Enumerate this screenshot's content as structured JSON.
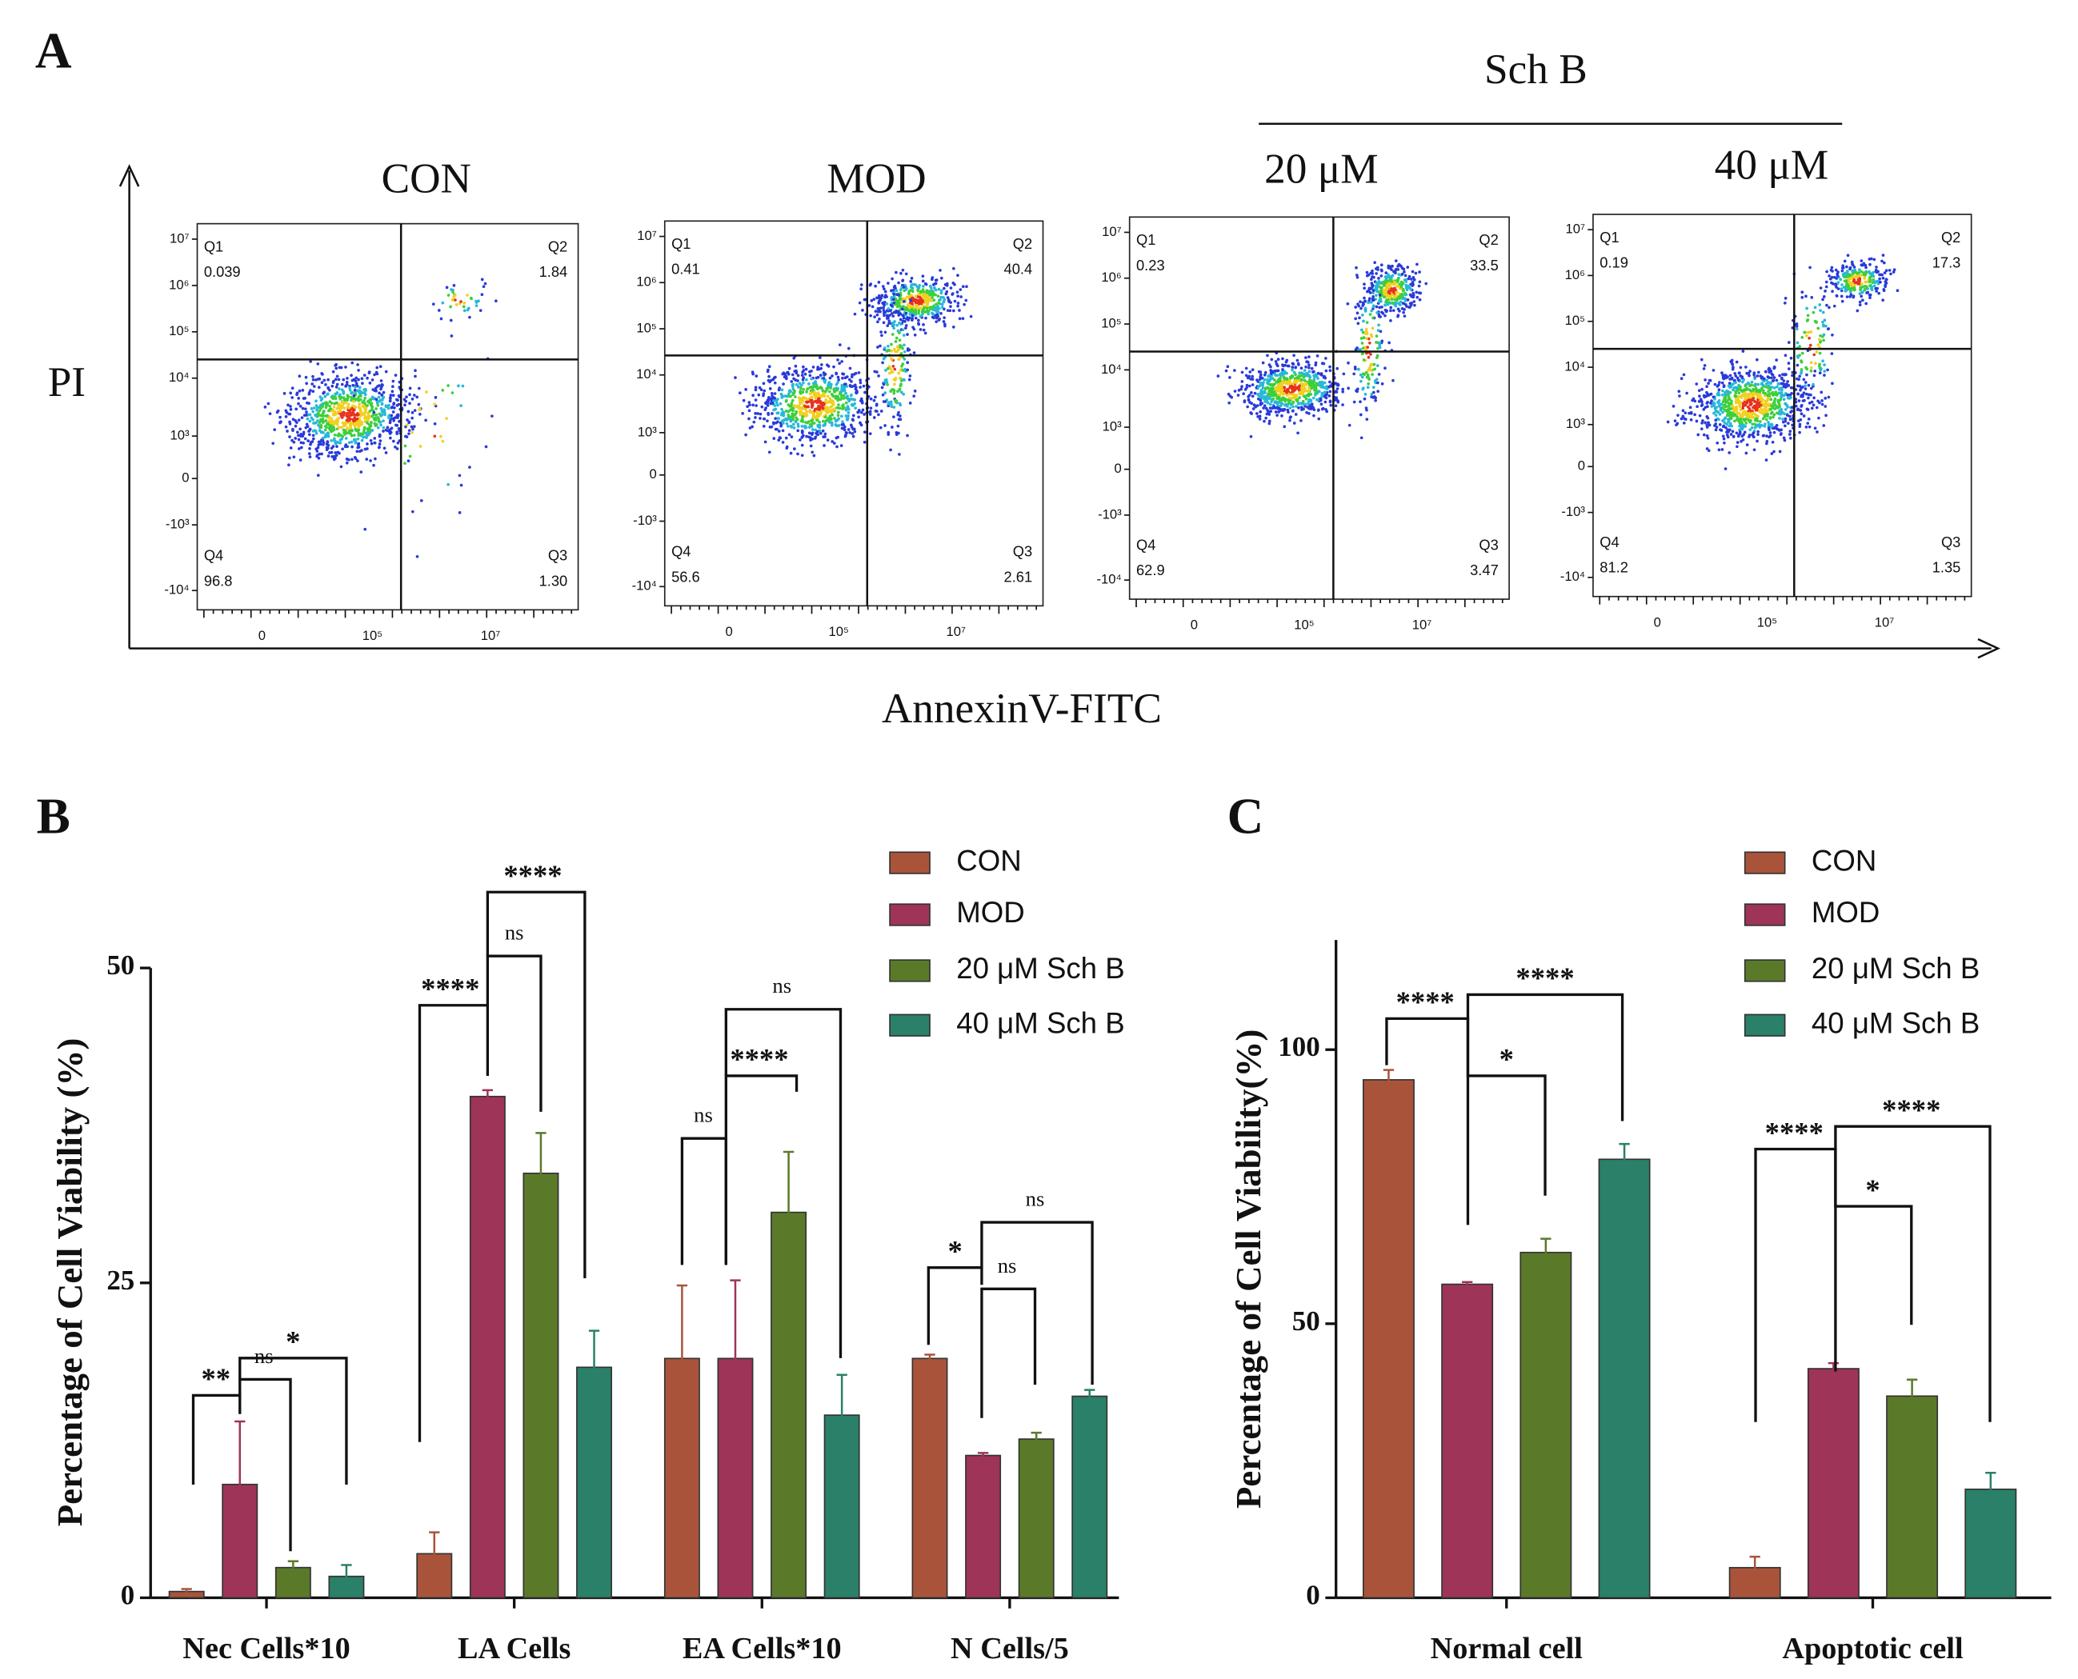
{
  "panel_labels": [
    "A",
    "B",
    "C"
  ],
  "flow": {
    "group_label": "Sch B",
    "x_axis_label": "AnnexinV-FITC",
    "y_axis_label": "PI",
    "yticks": [
      "10⁷",
      "10⁶",
      "10⁵",
      "10⁴",
      "10³",
      "0",
      "-10³",
      "-10⁴"
    ],
    "xticks": [
      "0",
      "10⁵",
      "10⁷"
    ],
    "plots": [
      {
        "title": "CON",
        "quadrants": [
          {
            "name": "Q1",
            "value": "0.039"
          },
          {
            "name": "Q2",
            "value": "1.84"
          },
          {
            "name": "Q3",
            "value": "1.30"
          },
          {
            "name": "Q4",
            "value": "96.8"
          }
        ]
      },
      {
        "title": "MOD",
        "quadrants": [
          {
            "name": "Q1",
            "value": "0.41"
          },
          {
            "name": "Q2",
            "value": "40.4"
          },
          {
            "name": "Q3",
            "value": "2.61"
          },
          {
            "name": "Q4",
            "value": "56.6"
          }
        ]
      },
      {
        "title": "20 μM",
        "quadrants": [
          {
            "name": "Q1",
            "value": "0.23"
          },
          {
            "name": "Q2",
            "value": "33.5"
          },
          {
            "name": "Q3",
            "value": "3.47"
          },
          {
            "name": "Q4",
            "value": "62.9"
          }
        ]
      },
      {
        "title": "40 μM",
        "quadrants": [
          {
            "name": "Q1",
            "value": "0.19"
          },
          {
            "name": "Q2",
            "value": "17.3"
          },
          {
            "name": "Q3",
            "value": "1.35"
          },
          {
            "name": "Q4",
            "value": "81.2"
          }
        ]
      }
    ]
  },
  "chart_data": [
    {
      "type": "bar",
      "y_label": "Percentage of Cell Viability (%)",
      "categories": [
        "Nec Cells*10",
        "LA Cells",
        "EA Cells*10",
        "N Cells/5"
      ],
      "series": [
        {
          "name": "CON",
          "color": "#a9543a",
          "values": [
            0.5,
            3.5,
            19,
            19
          ],
          "errors": [
            0.2,
            1.7,
            5.8,
            0.3
          ]
        },
        {
          "name": "MOD",
          "color": "#9e3458",
          "values": [
            9,
            39.8,
            19,
            11.3
          ],
          "errors": [
            5,
            0.5,
            6.2,
            0.2
          ]
        },
        {
          "name": "20 μM Sch B",
          "color": "#5a7a2a",
          "values": [
            2.4,
            33.7,
            30.6,
            12.6
          ],
          "errors": [
            0.5,
            3.2,
            4.8,
            0.5
          ]
        },
        {
          "name": "40 μM Sch B",
          "color": "#2a8068",
          "values": [
            1.7,
            18.3,
            14.5,
            16
          ],
          "errors": [
            0.9,
            2.9,
            3.2,
            0.5
          ]
        }
      ],
      "ylim": [
        0,
        50
      ],
      "yticks": [
        0,
        25,
        50
      ],
      "annotations": [
        "**",
        "ns",
        "*",
        "****",
        "ns",
        "****",
        "ns",
        "****",
        "ns",
        "*",
        "ns",
        "ns"
      ]
    },
    {
      "type": "bar",
      "y_label": "Percentage of Cell Viability(%)",
      "categories": [
        "Normal cell",
        "Apoptotic cell"
      ],
      "series": [
        {
          "name": "CON",
          "color": "#a9543a",
          "values": [
            94.5,
            5.5
          ],
          "errors": [
            1.8,
            2
          ]
        },
        {
          "name": "MOD",
          "color": "#9e3458",
          "values": [
            57.2,
            41.8
          ],
          "errors": [
            0.4,
            1
          ]
        },
        {
          "name": "20 μM Sch B",
          "color": "#5a7a2a",
          "values": [
            63,
            36.8
          ],
          "errors": [
            2.5,
            3
          ]
        },
        {
          "name": "40 μM Sch B",
          "color": "#2a8068",
          "values": [
            80,
            19.8
          ],
          "errors": [
            2.8,
            3
          ]
        }
      ],
      "ylim": [
        0,
        120
      ],
      "yticks": [
        0,
        50,
        100
      ],
      "annotations": [
        "****",
        "****",
        "*",
        "****",
        "****",
        "*"
      ]
    }
  ]
}
